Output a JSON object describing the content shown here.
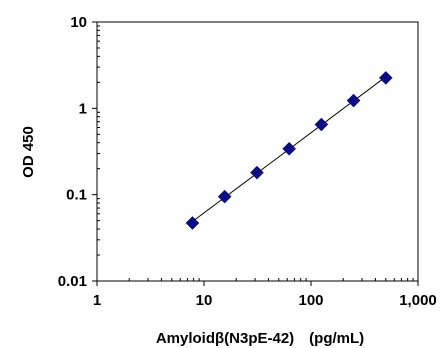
{
  "chart_data": {
    "type": "scatter",
    "title": "",
    "xlabel": "Amyloidβ(N3pE-42)　(pg/mL)",
    "ylabel": "OD 450",
    "x_scale": "log",
    "y_scale": "log",
    "xlim": [
      1,
      1000
    ],
    "ylim": [
      0.01,
      10
    ],
    "x_tick_values": [
      1,
      10,
      100,
      1000
    ],
    "x_tick_labels": [
      "1",
      "10",
      "100",
      "1,000"
    ],
    "y_tick_values": [
      0.01,
      0.1,
      1,
      10
    ],
    "y_tick_labels": [
      "0.01",
      "0.1",
      "1",
      "10"
    ],
    "grid": false,
    "legend": "none",
    "series": [
      {
        "x": [
          7.8,
          15.6,
          31.25,
          62.5,
          125,
          250,
          500
        ],
        "y": [
          0.047,
          0.095,
          0.18,
          0.34,
          0.65,
          1.23,
          2.25
        ],
        "marker": "diamond",
        "color": "#0a0a8a",
        "trendline": "power"
      }
    ]
  }
}
